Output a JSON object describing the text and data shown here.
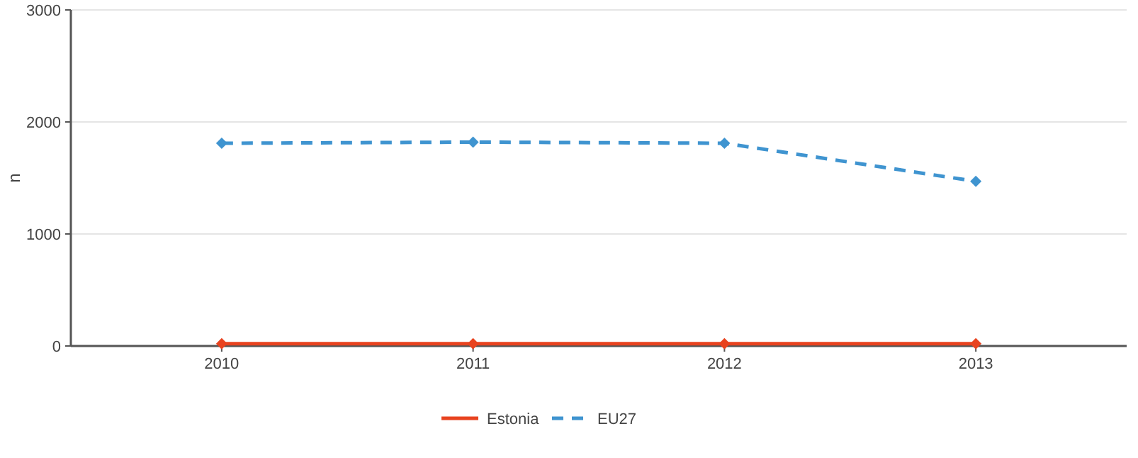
{
  "chart_data": {
    "type": "line",
    "ylabel": "n",
    "categories": [
      "2010",
      "2011",
      "2012",
      "2013"
    ],
    "series": [
      {
        "name": "Estonia",
        "color": "#e8431f",
        "values": [
          20,
          20,
          20,
          20
        ],
        "line_style": "solid"
      },
      {
        "name": "EU27",
        "color": "#3f94d0",
        "values": [
          1810,
          1820,
          1810,
          1470
        ],
        "line_style": "dashed"
      }
    ],
    "ylim": [
      0,
      3000
    ],
    "yticks": [
      0,
      1000,
      2000,
      3000
    ],
    "grid": "y",
    "legend": "bottom",
    "marker": "diamond"
  }
}
